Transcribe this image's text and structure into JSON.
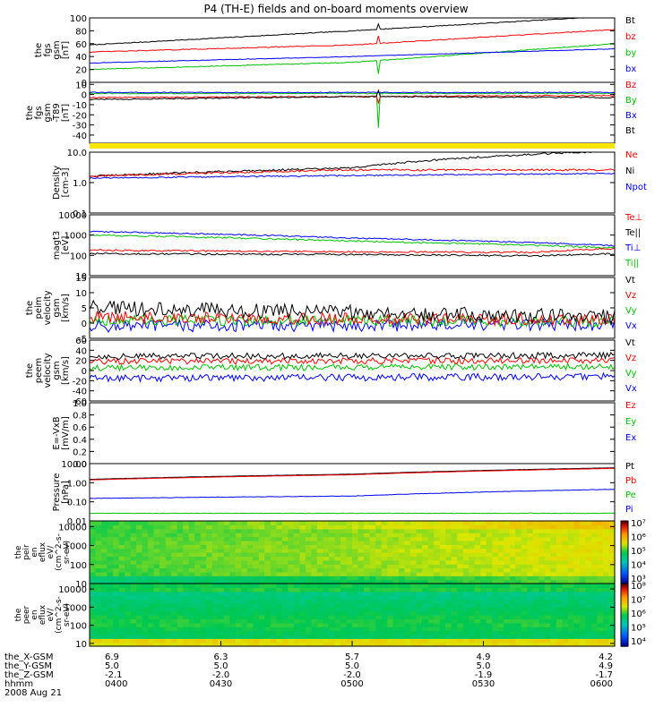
{
  "title": "P4 (TH-E) fields and on-board moments overview",
  "chart_data": {
    "type": "line",
    "panels": [
      {
        "id": "fgs_gsm",
        "ylabel": [
          "the",
          "fgs",
          "gsm",
          "[nT]"
        ],
        "ylim": [
          0,
          100
        ],
        "ytick_labels": [
          "0",
          "20",
          "40",
          "60",
          "80",
          "100"
        ],
        "legend": [
          {
            "label": "Bt",
            "color": "#000000"
          },
          {
            "label": "bz",
            "color": "#ff0000"
          },
          {
            "label": "by",
            "color": "#00c000"
          },
          {
            "label": "bx",
            "color": "#0000ff"
          }
        ],
        "series": [
          {
            "color": "#000000",
            "x": [
              0,
              0.5,
              1
            ],
            "y": [
              58,
              80,
              103
            ],
            "noise": 0.6,
            "spike": [
              0.55,
              8
            ]
          },
          {
            "color": "#ff0000",
            "x": [
              0,
              0.5,
              1
            ],
            "y": [
              47,
              58,
              82
            ],
            "noise": 0.6,
            "spike": [
              0.55,
              12
            ]
          },
          {
            "color": "#00c000",
            "x": [
              0,
              0.5,
              1
            ],
            "y": [
              20,
              31,
              60
            ],
            "noise": 0.6,
            "spike": [
              0.55,
              -20
            ]
          },
          {
            "color": "#0000ff",
            "x": [
              0,
              0.5,
              1
            ],
            "y": [
              30,
              40,
              52
            ],
            "noise": 0.4
          }
        ]
      },
      {
        "id": "fgs_gsm_t89",
        "ylabel": [
          "the",
          "fgs",
          "gsm",
          "-T89",
          "[nT]"
        ],
        "ylim": [
          -48,
          12
        ],
        "ytick_labels": [
          "-40",
          "-30",
          "-20",
          "-10",
          "0",
          "10"
        ],
        "legend": [
          {
            "label": "Bz",
            "color": "#ff0000"
          },
          {
            "label": "By",
            "color": "#00c000"
          },
          {
            "label": "Bx",
            "color": "#0000ff"
          },
          {
            "label": "Bt",
            "color": "#000000"
          }
        ],
        "series": [
          {
            "color": "#00c000",
            "x": [
              0,
              1
            ],
            "y": [
              1,
              1
            ],
            "noise": 0.5,
            "spike": [
              0.55,
              -34
            ]
          },
          {
            "color": "#0000ff",
            "x": [
              0,
              1
            ],
            "y": [
              2,
              2
            ],
            "noise": 0.4
          },
          {
            "color": "#ff0000",
            "x": [
              0,
              1
            ],
            "y": [
              -3,
              -1
            ],
            "noise": 0.6,
            "spike": [
              0.55,
              -6
            ]
          },
          {
            "color": "#000000",
            "x": [
              0,
              0.5,
              1
            ],
            "y": [
              -5,
              -2,
              -3
            ],
            "noise": 0.6,
            "spike": [
              0.55,
              6
            ]
          }
        ]
      },
      {
        "id": "density",
        "ylabel": [
          "Density",
          "[cm-3]"
        ],
        "scale": "log",
        "ylim": [
          0.1,
          10
        ],
        "ytick_labels": [
          "0.1",
          "1.0",
          "10.0"
        ],
        "legend": [
          {
            "label": "Ne",
            "color": "#ff0000"
          },
          {
            "label": "Ni",
            "color": "#000000"
          },
          {
            "label": "Npot",
            "color": "#0000ff"
          }
        ],
        "series": [
          {
            "color": "#000000",
            "x": [
              0,
              0.5,
              1
            ],
            "y": [
              1.6,
              3.0,
              11
            ],
            "noise": 0.03
          },
          {
            "color": "#ff0000",
            "x": [
              0,
              0.5,
              1
            ],
            "y": [
              1.6,
              2.6,
              2.6
            ],
            "noise": 0.03
          },
          {
            "color": "#0000ff",
            "x": [
              0,
              0.5,
              1
            ],
            "y": [
              1.4,
              1.7,
              2.0
            ],
            "noise": 0.02
          }
        ]
      },
      {
        "id": "mom_temp",
        "ylabel": [
          "magt3",
          "[eV]"
        ],
        "scale": "log",
        "ylim": [
          10,
          10000
        ],
        "ytick_labels": [
          "10",
          "100",
          "1000",
          "10000"
        ],
        "legend": [
          {
            "label": "Te⊥",
            "color": "#ff0000"
          },
          {
            "label": "Te||",
            "color": "#000000"
          },
          {
            "label": "Ti⊥",
            "color": "#0000ff"
          },
          {
            "label": "Ti||",
            "color": "#00c000"
          }
        ],
        "series": [
          {
            "color": "#0000ff",
            "x": [
              0,
              0.5,
              1
            ],
            "y": [
              1500,
              700,
              300
            ],
            "noise": 0.03
          },
          {
            "color": "#00c000",
            "x": [
              0,
              0.5,
              1
            ],
            "y": [
              1000,
              500,
              230
            ],
            "noise": 0.04
          },
          {
            "color": "#ff0000",
            "x": [
              0,
              0.5,
              0.85,
              1
            ],
            "y": [
              180,
              150,
              140,
              220
            ],
            "noise": 0.04
          },
          {
            "color": "#000000",
            "x": [
              0,
              0.5,
              0.85,
              1
            ],
            "y": [
              120,
              110,
              95,
              120
            ],
            "noise": 0.04
          }
        ]
      },
      {
        "id": "peim_velocity",
        "ylabel": [
          "the",
          "peim",
          "velocity",
          "gsm",
          "[km/s]"
        ],
        "ylim": [
          -5,
          15
        ],
        "ytick_labels": [
          "-5",
          "0",
          "5",
          "10",
          "15"
        ],
        "legend": [
          {
            "label": "Vt",
            "color": "#000000"
          },
          {
            "label": "Vz",
            "color": "#ff0000"
          },
          {
            "label": "Vy",
            "color": "#00c000"
          },
          {
            "label": "Vx",
            "color": "#0000ff"
          }
        ],
        "series": [
          {
            "color": "#0000ff",
            "x": [
              0,
              1
            ],
            "y": [
              -1,
              -0.5
            ],
            "noise": 2.0
          },
          {
            "color": "#00c000",
            "x": [
              0,
              1
            ],
            "y": [
              1,
              0.5
            ],
            "noise": 1.8
          },
          {
            "color": "#ff0000",
            "x": [
              0,
              1
            ],
            "y": [
              2,
              1
            ],
            "noise": 2.0
          },
          {
            "color": "#000000",
            "x": [
              0,
              1
            ],
            "y": [
              5,
              2
            ],
            "noise": 2.5
          }
        ]
      },
      {
        "id": "peem_velocity",
        "ylabel": [
          "the",
          "peem",
          "velocity",
          "gsm",
          "[km/s]"
        ],
        "ylim": [
          -60,
          60
        ],
        "ytick_labels": [
          "-60",
          "-40",
          "-20",
          "0",
          "20",
          "40",
          "60"
        ],
        "legend": [
          {
            "label": "Vt",
            "color": "#000000"
          },
          {
            "label": "Vz",
            "color": "#ff0000"
          },
          {
            "label": "Vy",
            "color": "#00c000"
          },
          {
            "label": "Vx",
            "color": "#0000ff"
          }
        ],
        "series": [
          {
            "color": "#0000ff",
            "x": [
              0,
              1
            ],
            "y": [
              -15,
              -12
            ],
            "noise": 7
          },
          {
            "color": "#00c000",
            "x": [
              0,
              1
            ],
            "y": [
              5,
              8
            ],
            "noise": 6
          },
          {
            "color": "#ff0000",
            "x": [
              0,
              1
            ],
            "y": [
              18,
              20
            ],
            "noise": 6
          },
          {
            "color": "#000000",
            "x": [
              0,
              1
            ],
            "y": [
              28,
              30
            ],
            "noise": 6
          }
        ]
      },
      {
        "id": "e_vxb",
        "ylabel": [
          "E=-VxB",
          "[mV/m]"
        ],
        "ylim": [
          0,
          1
        ],
        "ytick_labels": [
          "0.0",
          "0.2",
          "0.4",
          "0.6",
          "0.8",
          "1.0"
        ],
        "legend": [
          {
            "label": "Ez",
            "color": "#ff0000"
          },
          {
            "label": "Ey",
            "color": "#00c000"
          },
          {
            "label": "Ex",
            "color": "#0000ff"
          }
        ],
        "series": []
      },
      {
        "id": "pressure",
        "ylabel": [
          "Pressure",
          "[nPa]"
        ],
        "scale": "log",
        "ylim": [
          0.01,
          10
        ],
        "ytick_labels": [
          "0.01",
          "0.10",
          "1.00",
          "10.00"
        ],
        "legend": [
          {
            "label": "Pt",
            "color": "#000000"
          },
          {
            "label": "Pb",
            "color": "#ff0000"
          },
          {
            "label": "Pe",
            "color": "#00c000"
          },
          {
            "label": "Pi",
            "color": "#0000ff"
          }
        ],
        "series": [
          {
            "color": "#000000",
            "x": [
              0,
              0.5,
              1
            ],
            "y": [
              1.5,
              2.8,
              6
            ],
            "noise": 0.005
          },
          {
            "color": "#ff0000",
            "x": [
              0,
              0.5,
              1
            ],
            "y": [
              1.4,
              2.6,
              5.6
            ],
            "noise": 0.005
          },
          {
            "color": "#0000ff",
            "x": [
              0,
              0.5,
              1
            ],
            "y": [
              0.15,
              0.2,
              0.45
            ],
            "noise": 0.01
          },
          {
            "color": "#00c000",
            "x": [
              0,
              1
            ],
            "y": [
              0.025,
              0.025
            ],
            "noise": 0.01
          }
        ]
      }
    ],
    "spectrograms": [
      {
        "id": "peir_en_eflux",
        "type": "heatmap",
        "ylabel": [
          "the",
          "peir",
          "en",
          "eflux",
          "eV/",
          "(cm^2-s-",
          "sr-eV)"
        ],
        "scale": "log",
        "ylim": [
          10,
          20000
        ],
        "ytick_labels": [
          "10",
          "100",
          "1000",
          "10000"
        ],
        "colorbar_labels": [
          "10³",
          "10⁴",
          "10⁵",
          "10⁶",
          "10⁷"
        ],
        "colorbar_range": [
          3,
          7
        ]
      },
      {
        "id": "peer_en_eflux",
        "type": "heatmap",
        "ylabel": [
          "the",
          "peer",
          "en",
          "eflux",
          "eV/",
          "(cm^2-s-",
          "sr-eV)"
        ],
        "scale": "log",
        "ylim": [
          7,
          20000
        ],
        "ytick_labels": [
          "10",
          "100",
          "1000",
          "10000"
        ],
        "colorbar_labels": [
          "10⁴",
          "10⁵",
          "10⁶",
          "10⁷",
          "10⁸"
        ],
        "colorbar_range": [
          4,
          8
        ]
      }
    ],
    "x_axis": {
      "rows": [
        {
          "label": "the_X-GSM",
          "values": [
            "6.9",
            "6.3",
            "5.7",
            "4.9",
            "4.2"
          ]
        },
        {
          "label": "the_Y-GSM",
          "values": [
            "5.0",
            "5.0",
            "5.0",
            "5.0",
            "4.9"
          ]
        },
        {
          "label": "the_Z-GSM",
          "values": [
            "-2.1",
            "-2.0",
            "-2.0",
            "-1.9",
            "-1.7"
          ]
        },
        {
          "label": "hhmm",
          "values": [
            "0400",
            "0430",
            "0500",
            "0530",
            "0600"
          ]
        }
      ],
      "date": "2008 Aug 21"
    }
  }
}
